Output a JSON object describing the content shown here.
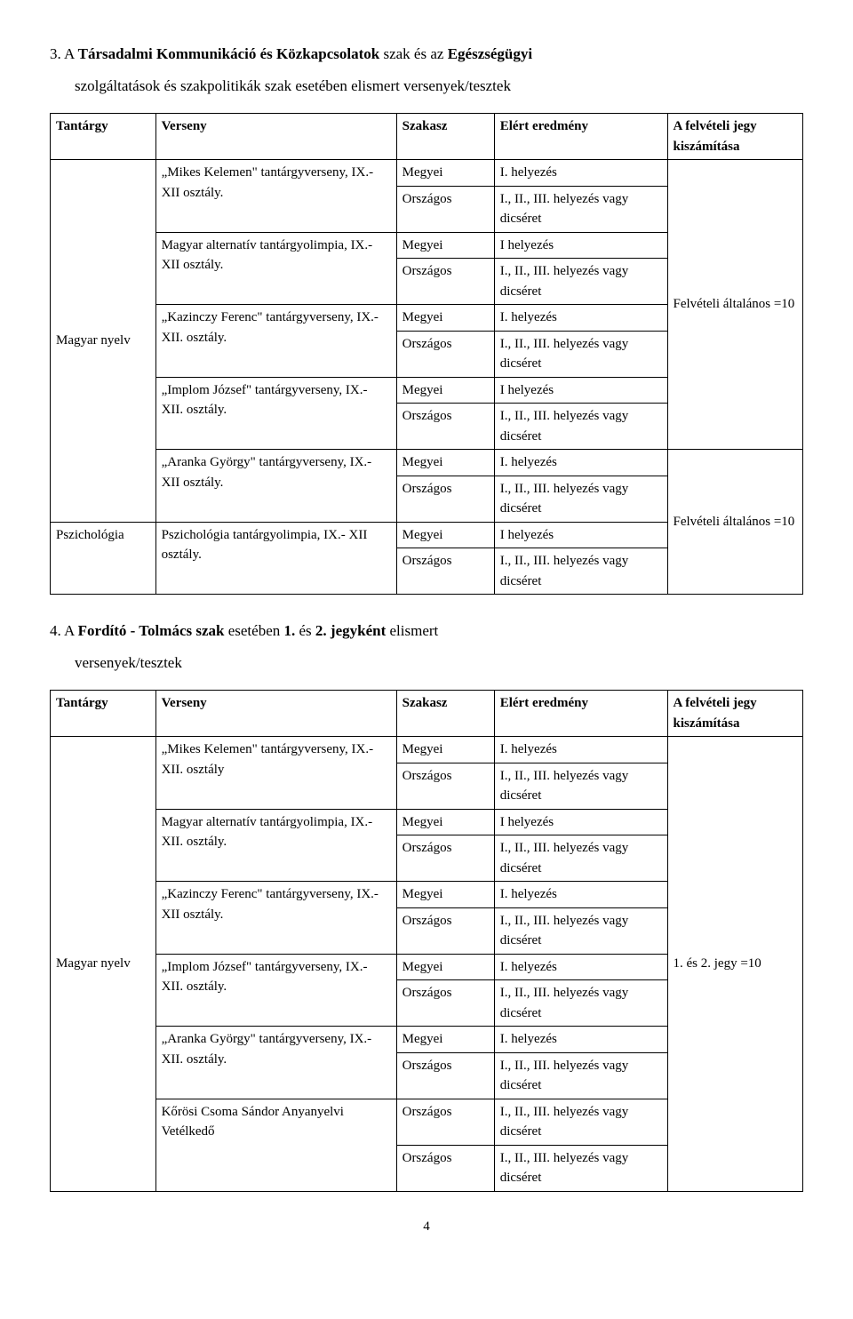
{
  "section3": {
    "lead_num": "3. A ",
    "bold1": "Társadalmi Kommunikáció és Közkapcsolatok",
    "mid1": " szak és az ",
    "bold2": "Egészségügyi",
    "indent_bold": "szolgáltatások és szakpolitikák",
    "indent_rest": " szak esetében elismert versenyek/tesztek"
  },
  "section4": {
    "lead_num": "4. A ",
    "bold1": "Fordító - Tolmács szak",
    "rest1": " esetében ",
    "bold2": "1.",
    "rest2": " és ",
    "bold3": "2. jegyként",
    "rest3": " elismert",
    "indent": "versenyek/tesztek"
  },
  "headers": {
    "subject": "Tantárgy",
    "contest": "Verseny",
    "stage": "Szakasz",
    "result": "Elért eredmény",
    "calc": "A felvételi jegy kiszámítása"
  },
  "stages": {
    "county": "Megyei",
    "national": "Országos"
  },
  "results": {
    "first": "I. helyezés",
    "first_no_dot": "I helyezés",
    "any": "I., II., III. helyezés vagy dicséret"
  },
  "subjects": {
    "hungarian": "Magyar nyelv",
    "psychology": "Pszichológia"
  },
  "contests3": {
    "mikes": "„Mikes Kelemen\" tantárgyverseny, IX.- XII osztály.",
    "alt": "Magyar alternatív tantárgyolimpia, IX.- XII osztály.",
    "kazinczy": "„Kazinczy Ferenc\" tantárgyverseny, IX.- XII. osztály.",
    "implom": "„Implom József\" tantárgyverseny, IX.- XII. osztály.",
    "aranka": "„Aranka György\" tantárgyverseny, IX.- XII osztály.",
    "psz": "Pszichológia tantárgyolimpia, IX.- XII osztály."
  },
  "contests4": {
    "mikes": "„Mikes Kelemen\" tantárgyverseny, IX.- XII. osztály",
    "alt": "Magyar alternatív tantárgyolimpia, IX.- XII. osztály.",
    "kazinczy": "„Kazinczy Ferenc\" tantárgyverseny, IX.- XII osztály.",
    "implom": "„Implom József\" tantárgyverseny, IX.- XII. osztály.",
    "aranka": "„Aranka György\" tantárgyverseny, IX.- XII. osztály.",
    "korosi": "Kőrösi Csoma Sándor Anyanyelvi Vetélkedő"
  },
  "calc": {
    "adm10": "Felvételi általános =10",
    "grades10": "1. és 2. jegy =10"
  },
  "page": "4"
}
